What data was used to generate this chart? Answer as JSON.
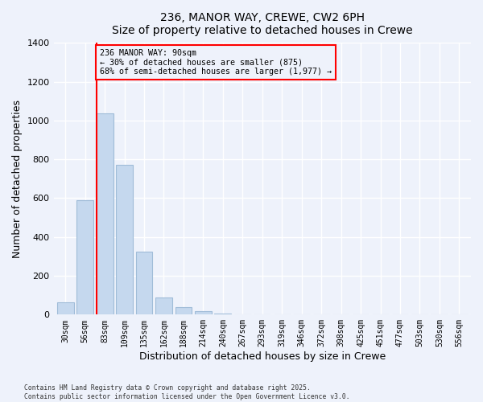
{
  "title": "236, MANOR WAY, CREWE, CW2 6PH",
  "subtitle": "Size of property relative to detached houses in Crewe",
  "xlabel": "Distribution of detached houses by size in Crewe",
  "ylabel": "Number of detached properties",
  "bar_color": "#c5d8ee",
  "bar_edge_color": "#a0bcd8",
  "background_color": "#eef2fb",
  "categories": [
    "30sqm",
    "56sqm",
    "83sqm",
    "109sqm",
    "135sqm",
    "162sqm",
    "188sqm",
    "214sqm",
    "240sqm",
    "267sqm",
    "293sqm",
    "319sqm",
    "346sqm",
    "372sqm",
    "398sqm",
    "425sqm",
    "451sqm",
    "477sqm",
    "503sqm",
    "530sqm",
    "556sqm"
  ],
  "values": [
    65,
    590,
    1035,
    770,
    325,
    90,
    40,
    20,
    5,
    0,
    0,
    0,
    0,
    0,
    0,
    0,
    0,
    0,
    0,
    0,
    0
  ],
  "ylim": [
    0,
    1400
  ],
  "yticks": [
    0,
    200,
    400,
    600,
    800,
    1000,
    1200,
    1400
  ],
  "red_line_x": 1.57,
  "annotation_line1": "236 MANOR WAY: 90sqm",
  "annotation_line2": "← 30% of detached houses are smaller (875)",
  "annotation_line3": "68% of semi-detached houses are larger (1,977) →",
  "footer_line1": "Contains HM Land Registry data © Crown copyright and database right 2025.",
  "footer_line2": "Contains public sector information licensed under the Open Government Licence v3.0."
}
